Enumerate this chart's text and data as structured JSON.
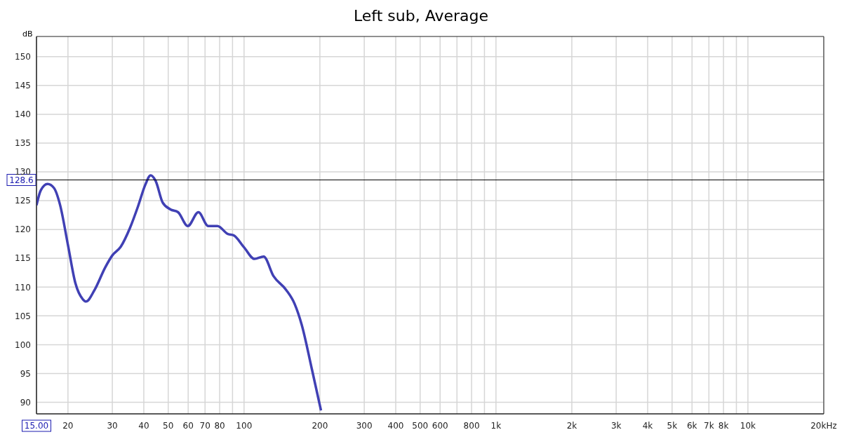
{
  "chart_data": {
    "type": "line",
    "title": "Left sub, Average",
    "ylabel": "dB",
    "x": [
      15,
      15.6,
      16.6,
      17.6,
      18.6,
      20,
      21.4,
      22.9,
      23.6,
      25.5,
      28.1,
      30,
      32.4,
      35.2,
      38,
      40.5,
      42.6,
      44.6,
      47.5,
      51,
      54.7,
      59.8,
      65.9,
      72.1,
      78.4,
      86.3,
      90.8,
      100,
      110,
      119.6,
      130.9,
      147,
      158.7,
      169.3,
      186,
      202
    ],
    "series": [
      {
        "color": "#4040b4",
        "values": [
          124.2,
          126.8,
          127.9,
          127.2,
          124.3,
          117.3,
          110.7,
          107.9,
          107.5,
          109.5,
          113.4,
          115.5,
          117,
          120.2,
          124.1,
          127.7,
          129.4,
          128.4,
          124.7,
          123.5,
          123,
          120.6,
          123,
          120.6,
          120.6,
          119.2,
          119,
          116.9,
          114.9,
          115.3,
          111.9,
          109.5,
          107.1,
          103.5,
          95.7,
          88.6
        ]
      }
    ],
    "log": "x",
    "xlim": [
      15,
      20000
    ],
    "ylim": [
      88,
      153.5
    ],
    "xticks": [
      {
        "value": 15,
        "label": "15.00"
      },
      20,
      30,
      40,
      50,
      60,
      70,
      80,
      {
        "value": 90,
        "label": null
      },
      100,
      200,
      300,
      400,
      500,
      600,
      {
        "value": 700,
        "label": null
      },
      800,
      {
        "value": 900,
        "label": null
      },
      {
        "value": 1000,
        "label": "1k"
      },
      {
        "value": 2000,
        "label": "2k"
      },
      {
        "value": 3000,
        "label": "3k"
      },
      {
        "value": 4000,
        "label": "4k"
      },
      {
        "value": 5000,
        "label": "5k"
      },
      {
        "value": 6000,
        "label": "6k"
      },
      {
        "value": 7000,
        "label": "7k"
      },
      {
        "value": 8000,
        "label": "8k"
      },
      {
        "value": 9000,
        "label": null
      },
      {
        "value": 10000,
        "label": "10k"
      },
      {
        "value": 20000,
        "label": "20k"
      }
    ],
    "xlabel": "Hz",
    "yticks": [
      90,
      95,
      100,
      105,
      110,
      115,
      120,
      125,
      130,
      135,
      140,
      145,
      150
    ],
    "ref_lines": [
      {
        "axis": "y",
        "value": 128.6,
        "label": "128.6",
        "color": "#000000"
      }
    ],
    "grid": true,
    "legend": false,
    "marker": "none",
    "line_style": "solid"
  }
}
